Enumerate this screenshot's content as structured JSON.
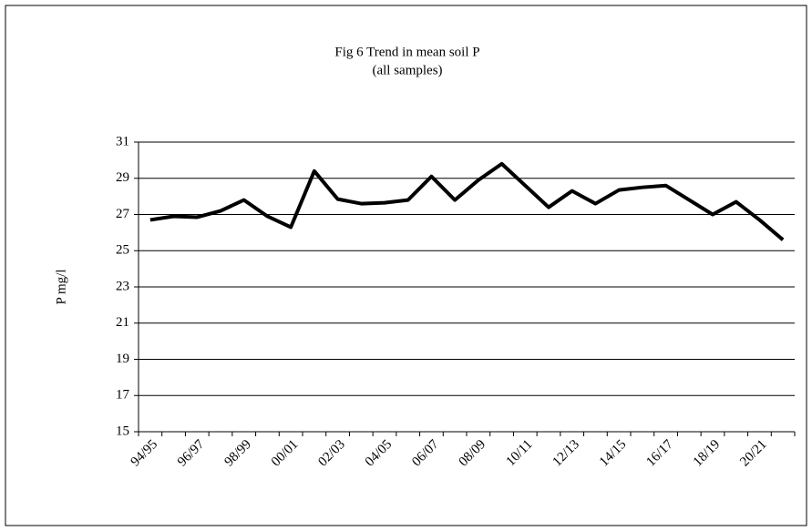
{
  "chart_data": {
    "type": "line",
    "title": "Fig 6 Trend in mean soil P",
    "subtitle": "(all samples)",
    "y_label": "P mg/l",
    "categories": [
      "94/95",
      null,
      "96/97",
      null,
      "98/99",
      null,
      "00/01",
      null,
      "02/03",
      null,
      "04/05",
      null,
      "06/07",
      null,
      "08/09",
      null,
      "10/11",
      null,
      "12/13",
      null,
      "14/15",
      null,
      "16/17",
      null,
      "18/19",
      null,
      "20/21",
      null
    ],
    "values": [
      26.7,
      26.9,
      26.85,
      27.2,
      27.8,
      26.9,
      26.3,
      29.4,
      27.85,
      27.6,
      27.65,
      27.8,
      29.1,
      27.8,
      28.9,
      29.8,
      28.6,
      27.4,
      28.3,
      27.6,
      28.35,
      28.5,
      28.6,
      27.8,
      27.0,
      27.7,
      26.7,
      25.6
    ],
    "color": "#000000",
    "ylim": [
      15,
      31
    ],
    "yticks": [
      15,
      17,
      19,
      21,
      23,
      25,
      27,
      29,
      31
    ],
    "grid": true
  }
}
